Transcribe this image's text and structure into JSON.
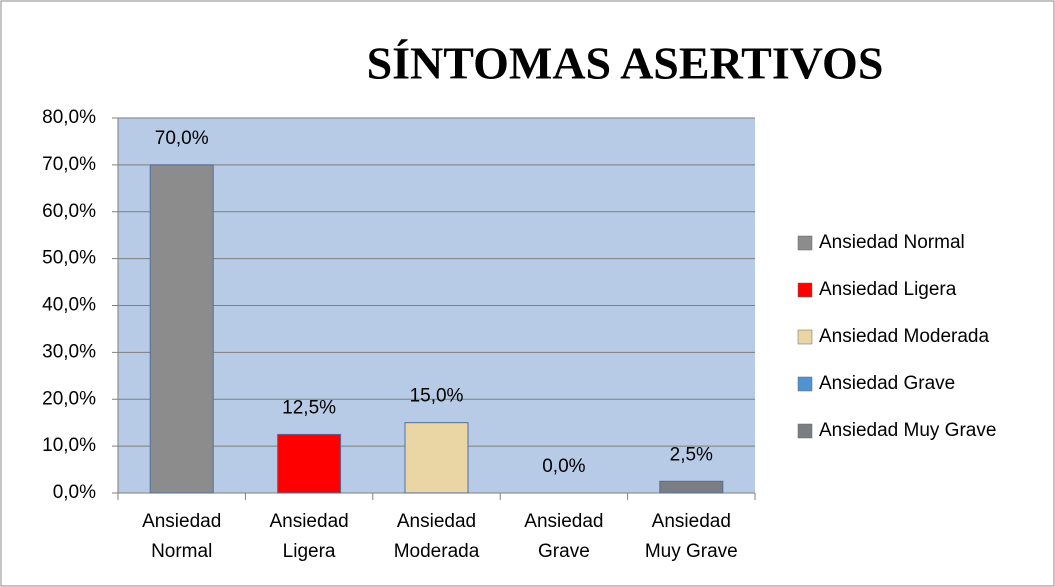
{
  "chart_data": {
    "type": "bar",
    "title": "SÍNTOMAS ASERTIVOS",
    "categories": [
      "Ansiedad Normal",
      "Ansiedad Ligera",
      "Ansiedad Moderada",
      "Ansiedad Grave",
      "Ansiedad Muy Grave"
    ],
    "values": [
      70,
      12.5,
      15,
      0,
      2.5
    ],
    "value_labels": [
      "70,0%",
      "12,5%",
      "15,0%",
      "0,0%",
      "2,5%"
    ],
    "colors": [
      "#8c8c8c",
      "#ff0000",
      "#e9d6a4",
      "#4f93d0",
      "#7a7d82"
    ],
    "ylim": [
      0,
      80
    ],
    "yticks": [
      {
        "value": 0,
        "label": "0,0%"
      },
      {
        "value": 10,
        "label": "10,0%"
      },
      {
        "value": 20,
        "label": "20,0%"
      },
      {
        "value": 30,
        "label": "30,0%"
      },
      {
        "value": 40,
        "label": "40,0%"
      },
      {
        "value": 50,
        "label": "50,0%"
      },
      {
        "value": 60,
        "label": "60,0%"
      },
      {
        "value": 70,
        "label": "70,0%"
      },
      {
        "value": 80,
        "label": "80,0%"
      }
    ],
    "grid": true,
    "legend": "right"
  }
}
